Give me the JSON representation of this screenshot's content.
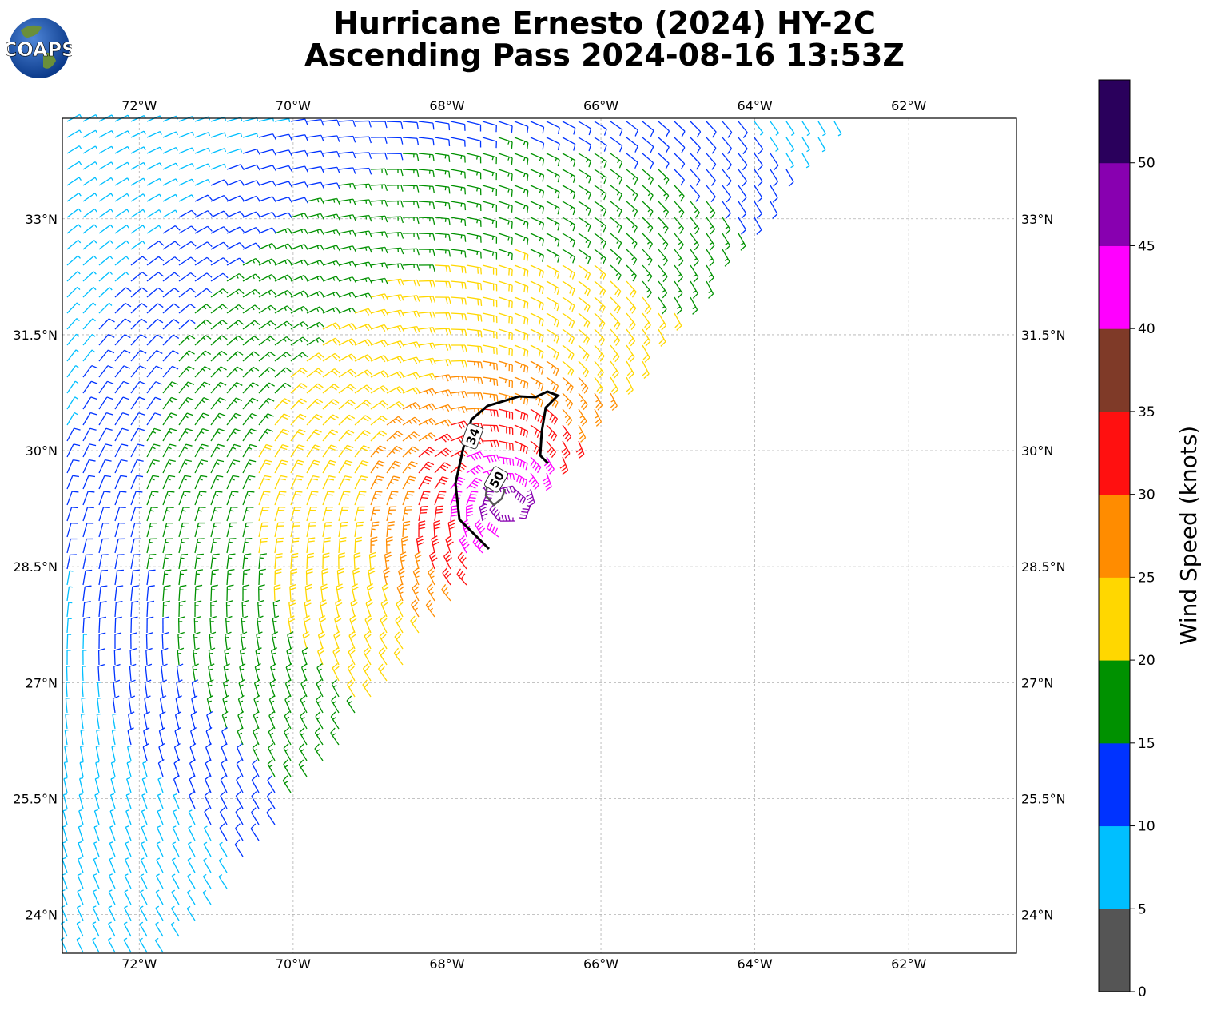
{
  "header": {
    "title_line1": "Hurricane Ernesto (2024) HY-2C",
    "title_line2": "Ascending Pass 2024-08-16 13:53Z",
    "logo_text": "COAPS"
  },
  "map": {
    "lon_labels": [
      "72°W",
      "70°W",
      "68°W",
      "66°W",
      "64°W",
      "62°W"
    ],
    "lat_labels": [
      "33°N",
      "31.5°N",
      "30°N",
      "28.5°N",
      "27°N",
      "25.5°N",
      "24°N"
    ],
    "lon_values": [
      -72,
      -70,
      -68,
      -66,
      -64,
      -62
    ],
    "lat_values": [
      33,
      31.5,
      30,
      28.5,
      27,
      25.5,
      24
    ],
    "lon_range": [
      -73.0,
      -60.6
    ],
    "lat_range": [
      23.5,
      34.3
    ],
    "storm_center": {
      "lon": -67.2,
      "lat": 29.3
    },
    "contours": [
      {
        "label": "34",
        "color": "#000000"
      },
      {
        "label": "50",
        "color": "#555555"
      }
    ]
  },
  "colorbar": {
    "title": "Wind Speed (knots)",
    "tick_labels": [
      "0",
      "5",
      "10",
      "15",
      "20",
      "25",
      "30",
      "35",
      "40",
      "45",
      "50"
    ],
    "colors": [
      "#555555",
      "#00bfff",
      "#0033ff",
      "#009100",
      "#ffd700",
      "#ff8c00",
      "#ff1010",
      "#7f3a28",
      "#ff00ff",
      "#8800b0",
      "#2a005c"
    ]
  }
}
